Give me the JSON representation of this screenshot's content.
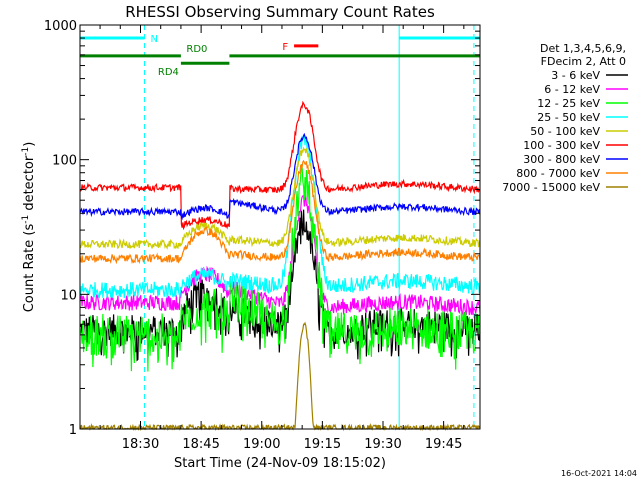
{
  "chart_data": {
    "type": "line",
    "title": "RHESSI Observing Summary Count Rates",
    "xlabel": "Start Time (24-Nov-09 18:15:02)",
    "ylabel_main": "Count Rate (s",
    "ylabel_sup1": "-1",
    "ylabel_mid": " detector",
    "ylabel_sup2": "-1",
    "ylabel_end": ")",
    "timestamp": "16-Oct-2021 14:04",
    "x_axis": {
      "start_time": "18:15:02",
      "end_time": "19:54:00",
      "ticks": [
        {
          "time": "18:30",
          "label": "18:30"
        },
        {
          "time": "18:45",
          "label": "18:45"
        },
        {
          "time": "19:00",
          "label": "19:00"
        },
        {
          "time": "19:15",
          "label": "19:15"
        },
        {
          "time": "19:30",
          "label": "19:30"
        },
        {
          "time": "19:45",
          "label": "19:45"
        }
      ]
    },
    "y_axis": {
      "scale": "log",
      "ylim": [
        1,
        1000
      ],
      "major_ticks": [
        {
          "value": 1,
          "label": "1"
        },
        {
          "value": 10,
          "label": "10"
        },
        {
          "value": 100,
          "label": "100"
        },
        {
          "value": 1000,
          "label": "1000"
        }
      ]
    },
    "legend_header": [
      "Det 1,3,4,5,6,9,",
      "FDecim 2, Att 0"
    ],
    "legend_position": "right",
    "series": [
      {
        "name": "3 - 6 keV",
        "color": "#000000",
        "base_pre": 5.4,
        "base_rd4": 6.4,
        "base_rd0": 7.8,
        "base_post": 5.4,
        "peak": 34,
        "bump": 1.6,
        "noise": 0.12,
        "floor": 0
      },
      {
        "name": "6 - 12 keV",
        "color": "#ff00ff",
        "base_pre": 8.7,
        "base_rd4": 10.0,
        "base_rd0": 11.2,
        "base_post": 7.8,
        "peak": 50,
        "bump": 1.4,
        "noise": 0.06,
        "floor": 0
      },
      {
        "name": "12 - 25 keV",
        "color": "#00ff00",
        "base_pre": 5.0,
        "base_rd4": 6.3,
        "base_rd0": 9.6,
        "base_post": 5.0,
        "peak": 70,
        "bump": 1.25,
        "noise": 0.16,
        "floor": 0
      },
      {
        "name": "25 - 50 keV",
        "color": "#00ffff",
        "base_pre": 10.8,
        "base_rd4": 11.6,
        "base_rd0": 12.8,
        "base_post": 11.2,
        "peak": 138,
        "bump": 1.2,
        "noise": 0.06,
        "floor": 0
      },
      {
        "name": "50 - 100 keV",
        "color": "#cccc00",
        "base_pre": 23.5,
        "base_rd4": 24.0,
        "base_rd0": 25.5,
        "base_post": 23.5,
        "peak": 120,
        "bump": 1.35,
        "noise": 0.03,
        "floor": 0
      },
      {
        "name": "100 - 300 keV",
        "color": "#ff0000",
        "base_pre": 62,
        "base_rd4": 32,
        "base_rd0": 61,
        "base_post": 59,
        "peak": 255,
        "bump": 1.12,
        "noise": 0.025,
        "floor": 0
      },
      {
        "name": "300 - 800 keV",
        "color": "#0000ff",
        "base_pre": 41,
        "base_rd4": 38,
        "base_rd0": 49,
        "base_post": 40,
        "peak": 150,
        "bump": 1.15,
        "noise": 0.025,
        "floor": 0
      },
      {
        "name": "800 - 7000 keV",
        "color": "#ff8000",
        "base_pre": 18.5,
        "base_rd4": 18.5,
        "base_rd0": 20,
        "base_post": 18.3,
        "peak": 95,
        "bump": 1.6,
        "noise": 0.03,
        "floor": 0
      },
      {
        "name": "7000 - 15000 keV",
        "color": "#a08000",
        "base_pre": 0,
        "base_rd4": 0,
        "base_rd0": 0,
        "base_post": 0,
        "peak": 6,
        "bump": 1,
        "noise": 0.05,
        "floor": 1
      }
    ],
    "flare_peak_time": "19:10:30",
    "rd_switch_times": {
      "rd4_start": "18:40:00",
      "rd0_start": "18:52:00"
    },
    "flags": [
      {
        "label": "N",
        "color": "#00ffff",
        "segments": [
          [
            "18:15:02",
            "18:31:00"
          ],
          [
            "19:34:00",
            "19:54:00"
          ]
        ],
        "level": 800
      },
      {
        "label": "RD4",
        "color": "#008000",
        "segments": [
          [
            "18:40:00",
            "18:52:00"
          ]
        ],
        "level": 520
      },
      {
        "label": "RD0",
        "color": "#008000",
        "segments": [
          [
            "18:15:02",
            "18:40:00"
          ],
          [
            "18:52:00",
            "19:54:00"
          ]
        ],
        "level": 590
      },
      {
        "label": "F",
        "color": "#ff0000",
        "segments": [
          [
            "19:08:00",
            "19:14:00"
          ]
        ],
        "level": 700
      }
    ],
    "vlines": [
      {
        "time": "18:15:02",
        "color": "#00ffff",
        "style": "solid"
      },
      {
        "time": "18:31:00",
        "color": "#00ffff",
        "style": "dashed"
      },
      {
        "time": "19:34:00",
        "color": "#00ffff",
        "style": "solid"
      },
      {
        "time": "19:52:30",
        "color": "#00ffff",
        "style": "dashed"
      }
    ]
  }
}
